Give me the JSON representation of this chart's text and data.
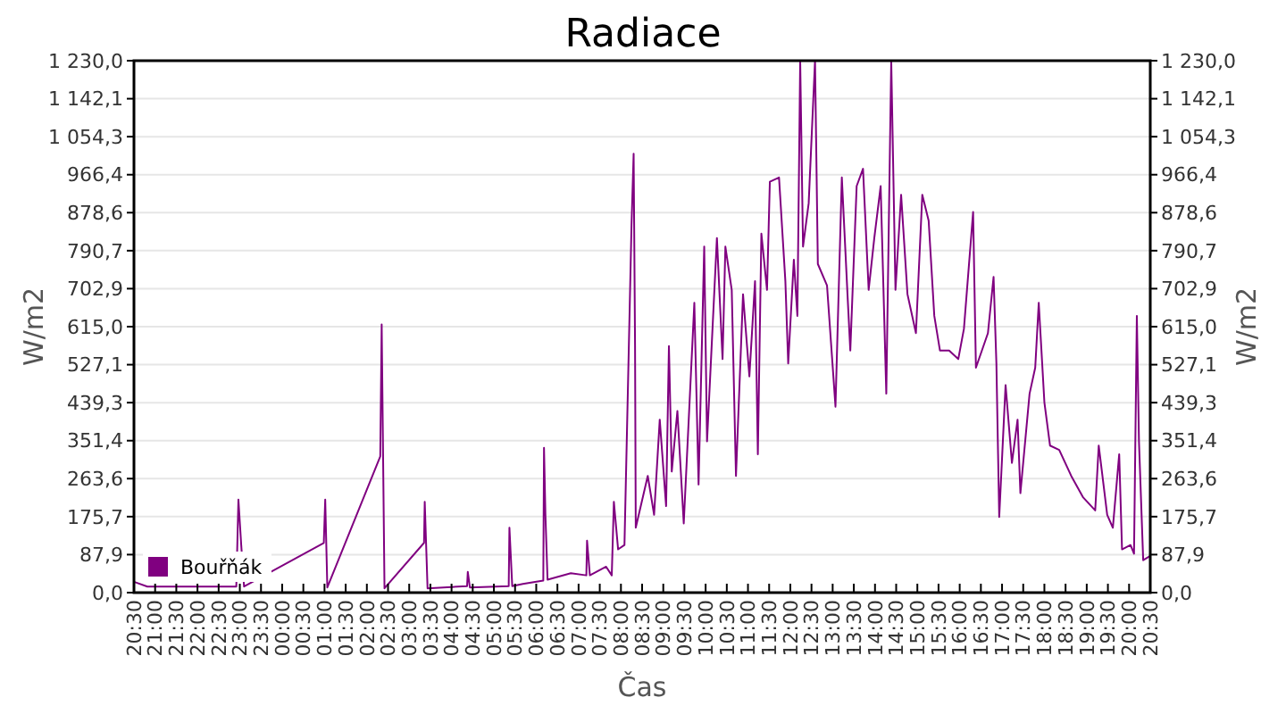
{
  "chart_data": {
    "type": "line",
    "title": "Radiace",
    "xlabel": "Čas",
    "ylabel": "W/m2",
    "y2label": "W/m2",
    "xlim": [
      "2000-01-01T20:30",
      "2000-01-02T20:30"
    ],
    "xticks": [
      {
        "value": "2000-01-01T20:30",
        "label": "20:30"
      },
      {
        "value": "2000-01-01T21:00",
        "label": "21:00"
      },
      {
        "value": "2000-01-01T21:30",
        "label": "21:30"
      },
      {
        "value": "2000-01-01T22:00",
        "label": "22:00"
      },
      {
        "value": "2000-01-01T22:30",
        "label": "22:30"
      },
      {
        "value": "2000-01-01T23:00",
        "label": "23:00"
      },
      {
        "value": "2000-01-01T23:30",
        "label": "23:30"
      },
      {
        "value": "2000-01-02T00:00",
        "label": "00:00"
      },
      {
        "value": "2000-01-02T00:30",
        "label": "00:30"
      },
      {
        "value": "2000-01-02T01:00",
        "label": "01:00"
      },
      {
        "value": "2000-01-02T01:30",
        "label": "01:30"
      },
      {
        "value": "2000-01-02T02:00",
        "label": "02:00"
      },
      {
        "value": "2000-01-02T02:30",
        "label": "02:30"
      },
      {
        "value": "2000-01-02T03:00",
        "label": "03:00"
      },
      {
        "value": "2000-01-02T03:30",
        "label": "03:30"
      },
      {
        "value": "2000-01-02T04:00",
        "label": "04:00"
      },
      {
        "value": "2000-01-02T04:30",
        "label": "04:30"
      },
      {
        "value": "2000-01-02T05:00",
        "label": "05:00"
      },
      {
        "value": "2000-01-02T05:30",
        "label": "05:30"
      },
      {
        "value": "2000-01-02T06:00",
        "label": "06:00"
      },
      {
        "value": "2000-01-02T06:30",
        "label": "06:30"
      },
      {
        "value": "2000-01-02T07:00",
        "label": "07:00"
      },
      {
        "value": "2000-01-02T07:30",
        "label": "07:30"
      },
      {
        "value": "2000-01-02T08:00",
        "label": "08:00"
      },
      {
        "value": "2000-01-02T08:30",
        "label": "08:30"
      },
      {
        "value": "2000-01-02T09:00",
        "label": "09:00"
      },
      {
        "value": "2000-01-02T09:30",
        "label": "09:30"
      },
      {
        "value": "2000-01-02T10:00",
        "label": "10:00"
      },
      {
        "value": "2000-01-02T10:30",
        "label": "10:30"
      },
      {
        "value": "2000-01-02T11:00",
        "label": "11:00"
      },
      {
        "value": "2000-01-02T11:30",
        "label": "11:30"
      },
      {
        "value": "2000-01-02T12:00",
        "label": "12:00"
      },
      {
        "value": "2000-01-02T12:30",
        "label": "12:30"
      },
      {
        "value": "2000-01-02T13:00",
        "label": "13:00"
      },
      {
        "value": "2000-01-02T13:30",
        "label": "13:30"
      },
      {
        "value": "2000-01-02T14:00",
        "label": "14:00"
      },
      {
        "value": "2000-01-02T14:30",
        "label": "14:30"
      },
      {
        "value": "2000-01-02T15:00",
        "label": "15:00"
      },
      {
        "value": "2000-01-02T15:30",
        "label": "15:30"
      },
      {
        "value": "2000-01-02T16:00",
        "label": "16:00"
      },
      {
        "value": "2000-01-02T16:30",
        "label": "16:30"
      },
      {
        "value": "2000-01-02T17:00",
        "label": "17:00"
      },
      {
        "value": "2000-01-02T17:30",
        "label": "17:30"
      },
      {
        "value": "2000-01-02T18:00",
        "label": "18:00"
      },
      {
        "value": "2000-01-02T18:30",
        "label": "18:30"
      },
      {
        "value": "2000-01-02T19:00",
        "label": "19:00"
      },
      {
        "value": "2000-01-02T19:30",
        "label": "19:30"
      },
      {
        "value": "2000-01-02T20:00",
        "label": "20:00"
      },
      {
        "value": "2000-01-02T20:30",
        "label": "20:30"
      }
    ],
    "ylim": [
      0,
      1230
    ],
    "yticks": [
      {
        "value": 0,
        "label": "0,0"
      },
      {
        "value": 87.9,
        "label": "87,9"
      },
      {
        "value": 175.7,
        "label": "175,7"
      },
      {
        "value": 263.6,
        "label": "263,6"
      },
      {
        "value": 351.4,
        "label": "351,4"
      },
      {
        "value": 439.3,
        "label": "439,3"
      },
      {
        "value": 527.1,
        "label": "527,1"
      },
      {
        "value": 615,
        "label": "615,0"
      },
      {
        "value": 702.9,
        "label": "702,9"
      },
      {
        "value": 790.7,
        "label": "790,7"
      },
      {
        "value": 878.6,
        "label": "878,6"
      },
      {
        "value": 966.4,
        "label": "966,4"
      },
      {
        "value": 1054.3,
        "label": "1 054,3"
      },
      {
        "value": 1142.1,
        "label": "1 142,1"
      },
      {
        "value": 1230,
        "label": "1 230,0"
      }
    ],
    "y2lim": [
      0,
      1230
    ],
    "y2ticks": [
      {
        "value": 0,
        "label": "0,0"
      },
      {
        "value": 87.9,
        "label": "87,9"
      },
      {
        "value": 175.7,
        "label": "175,7"
      },
      {
        "value": 263.6,
        "label": "263,6"
      },
      {
        "value": 351.4,
        "label": "351,4"
      },
      {
        "value": 439.3,
        "label": "439,3"
      },
      {
        "value": 527.1,
        "label": "527,1"
      },
      {
        "value": 615,
        "label": "615,0"
      },
      {
        "value": 702.9,
        "label": "702,9"
      },
      {
        "value": 790.7,
        "label": "790,7"
      },
      {
        "value": 878.6,
        "label": "878,6"
      },
      {
        "value": 966.4,
        "label": "966,4"
      },
      {
        "value": 1054.3,
        "label": "1 054,3"
      },
      {
        "value": 1142.1,
        "label": "1 142,1"
      },
      {
        "value": 1230,
        "label": "1 230,0"
      }
    ],
    "grid": "y",
    "legend": "bottom left",
    "marker": "none",
    "line_style": "solid",
    "x": [
      "2000-01-01T20:30",
      "2000-01-01T20:49",
      "2000-01-01T22:55",
      "2000-01-01T22:58",
      "2000-01-01T23:02",
      "2000-01-01T23:06",
      "2000-01-02T00:59",
      "2000-01-02T01:01",
      "2000-01-02T01:04",
      "2000-01-02T02:19",
      "2000-01-02T02:21",
      "2000-01-02T02:25",
      "2000-01-02T03:21",
      "2000-01-02T03:22",
      "2000-01-02T03:26",
      "2000-01-02T04:22",
      "2000-01-02T04:23",
      "2000-01-02T04:26",
      "2000-01-02T05:21",
      "2000-01-02T05:22",
      "2000-01-02T05:26",
      "2000-01-02T05:41",
      "2000-01-02T06:10",
      "2000-01-02T06:11",
      "2000-01-02T06:13",
      "2000-01-02T06:16",
      "2000-01-02T06:49",
      "2000-01-02T07:11",
      "2000-01-02T07:12",
      "2000-01-02T07:16",
      "2000-01-02T07:39",
      "2000-01-02T07:47",
      "2000-01-02T07:50",
      "2000-01-02T07:56",
      "2000-01-02T08:05",
      "2000-01-02T08:15",
      "2000-01-02T08:18",
      "2000-01-02T08:20",
      "2000-01-02T08:21",
      "2000-01-02T08:38",
      "2000-01-02T08:47",
      "2000-01-02T08:55",
      "2000-01-02T09:04",
      "2000-01-02T09:08",
      "2000-01-02T09:12",
      "2000-01-02T09:20",
      "2000-01-02T09:29",
      "2000-01-02T09:44",
      "2000-01-02T09:50",
      "2000-01-02T09:58",
      "2000-01-02T10:02",
      "2000-01-02T10:16",
      "2000-01-02T10:24",
      "2000-01-02T10:28",
      "2000-01-02T10:37",
      "2000-01-02T10:43",
      "2000-01-02T10:53",
      "2000-01-02T11:02",
      "2000-01-02T11:10",
      "2000-01-02T11:14",
      "2000-01-02T11:19",
      "2000-01-02T11:27",
      "2000-01-02T11:31",
      "2000-01-02T11:44",
      "2000-01-02T11:53",
      "2000-01-02T11:57",
      "2000-01-02T12:05",
      "2000-01-02T12:10",
      "2000-01-02T12:14",
      "2000-01-02T12:18",
      "2000-01-02T12:26",
      "2000-01-02T12:35",
      "2000-01-02T12:39",
      "2000-01-02T12:52",
      "2000-01-02T13:04",
      "2000-01-02T13:13",
      "2000-01-02T13:21",
      "2000-01-02T13:25",
      "2000-01-02T13:34",
      "2000-01-02T13:43",
      "2000-01-02T13:51",
      "2000-01-02T13:59",
      "2000-01-02T14:08",
      "2000-01-02T14:16",
      "2000-01-02T14:23",
      "2000-01-02T14:29",
      "2000-01-02T14:37",
      "2000-01-02T14:46",
      "2000-01-02T14:58",
      "2000-01-02T15:07",
      "2000-01-02T15:16",
      "2000-01-02T15:24",
      "2000-01-02T15:32",
      "2000-01-02T15:45",
      "2000-01-02T15:58",
      "2000-01-02T16:06",
      "2000-01-02T16:19",
      "2000-01-02T16:23",
      "2000-01-02T16:40",
      "2000-01-02T16:48",
      "2000-01-02T16:52",
      "2000-01-02T16:56",
      "2000-01-02T17:05",
      "2000-01-02T17:14",
      "2000-01-02T17:22",
      "2000-01-02T17:26",
      "2000-01-02T17:39",
      "2000-01-02T17:47",
      "2000-01-02T17:52",
      "2000-01-02T18:00",
      "2000-01-02T18:08",
      "2000-01-02T18:21",
      "2000-01-02T18:38",
      "2000-01-02T18:55",
      "2000-01-02T19:12",
      "2000-01-02T19:17",
      "2000-01-02T19:29",
      "2000-01-02T19:37",
      "2000-01-02T19:46",
      "2000-01-02T19:50",
      "2000-01-02T20:02",
      "2000-01-02T20:07",
      "2000-01-02T20:11",
      "2000-01-02T20:14",
      "2000-01-02T20:20",
      "2000-01-02T20:30"
    ],
    "series": [
      {
        "name": "Bouřňák",
        "color": "#800080",
        "values": [
          25,
          14,
          14,
          215,
          110,
          14,
          115,
          215,
          12,
          315,
          620,
          10,
          115,
          210,
          10,
          15,
          48,
          12,
          15,
          150,
          15,
          20,
          28,
          335,
          180,
          30,
          45,
          40,
          120,
          40,
          60,
          40,
          210,
          100,
          110,
          850,
          1015,
          570,
          150,
          270,
          180,
          400,
          200,
          570,
          280,
          420,
          160,
          670,
          250,
          800,
          350,
          820,
          540,
          800,
          700,
          270,
          690,
          500,
          720,
          320,
          830,
          700,
          950,
          960,
          720,
          530,
          770,
          640,
          1230,
          800,
          900,
          1230,
          760,
          710,
          430,
          960,
          690,
          560,
          940,
          980,
          700,
          820,
          940,
          460,
          1230,
          700,
          920,
          690,
          600,
          920,
          860,
          640,
          560,
          560,
          540,
          610,
          880,
          520,
          600,
          730,
          530,
          175,
          480,
          300,
          400,
          230,
          460,
          520,
          670,
          440,
          340,
          330,
          270,
          220,
          190,
          340,
          180,
          150,
          320,
          100,
          110,
          90,
          640,
          350,
          75,
          85
        ]
      }
    ]
  }
}
